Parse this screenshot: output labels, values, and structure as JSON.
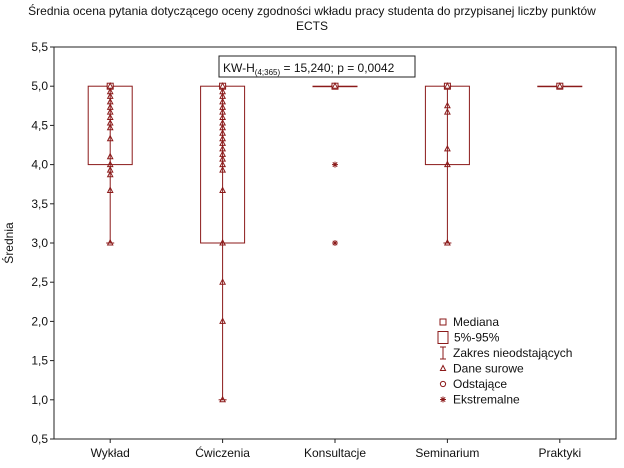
{
  "chart_data": {
    "type": "box",
    "title_line1": "Średnia ocena pytania dotyczącego oceny zgodności wkładu pracy studenta do przypisanej liczby punktów",
    "title_line2": "ECTS",
    "ylabel": "Średnia",
    "xlabel": "",
    "ylim": [
      0.5,
      5.5
    ],
    "yticks": [
      "0,5",
      "1,0",
      "1,5",
      "2,0",
      "2,5",
      "3,0",
      "3,5",
      "4,0",
      "4,5",
      "5,0",
      "5,5"
    ],
    "annotation": {
      "prefix": "KW-H",
      "sub": "(4;365)",
      "rest": " = 15,240; p = 0,0042"
    },
    "categories": [
      "Wykład",
      "Ćwiczenia",
      "Konsultacje",
      "Seminarium",
      "Praktyki"
    ],
    "boxes": [
      {
        "name": "Wykład",
        "median": 5.0,
        "q_low": 4.0,
        "q_high": 5.0,
        "whisker_low": 3.0,
        "whisker_high": 5.0,
        "raw": [
          5.0,
          4.93,
          4.87,
          4.8,
          4.73,
          4.67,
          4.6,
          4.53,
          4.47,
          4.33,
          4.1,
          4.0,
          3.93,
          3.87,
          3.67,
          3.0
        ],
        "extremes": []
      },
      {
        "name": "Ćwiczenia",
        "median": 5.0,
        "q_low": 3.0,
        "q_high": 5.0,
        "whisker_low": 1.0,
        "whisker_high": 5.0,
        "raw": [
          5.0,
          4.93,
          4.87,
          4.8,
          4.73,
          4.67,
          4.6,
          4.53,
          4.47,
          4.4,
          4.33,
          4.27,
          4.2,
          4.13,
          4.07,
          4.0,
          3.93,
          3.67,
          3.0,
          2.5,
          2.0,
          1.0
        ],
        "extremes": []
      },
      {
        "name": "Konsultacje",
        "median": 5.0,
        "q_low": 5.0,
        "q_high": 5.0,
        "whisker_low": 5.0,
        "whisker_high": 5.0,
        "raw": [
          5.0
        ],
        "extremes": [
          4.0,
          3.0
        ]
      },
      {
        "name": "Seminarium",
        "median": 5.0,
        "q_low": 4.0,
        "q_high": 5.0,
        "whisker_low": 3.0,
        "whisker_high": 5.0,
        "raw": [
          5.0,
          4.75,
          4.67,
          4.2,
          4.0,
          3.0
        ],
        "extremes": []
      },
      {
        "name": "Praktyki",
        "median": 5.0,
        "q_low": 5.0,
        "q_high": 5.0,
        "whisker_low": 5.0,
        "whisker_high": 5.0,
        "raw": [
          5.0
        ],
        "extremes": []
      }
    ],
    "legend": {
      "placement": "bottom-right",
      "items": [
        {
          "key": "median",
          "label": "Mediana"
        },
        {
          "key": "box",
          "label": "5%-95%"
        },
        {
          "key": "whisker",
          "label": "Zakres nieodstających"
        },
        {
          "key": "raw",
          "label": "Dane surowe"
        },
        {
          "key": "outlier",
          "label": "Odstające"
        },
        {
          "key": "extreme",
          "label": "Ekstremalne"
        }
      ]
    },
    "colors": {
      "box": "#8b1a1a",
      "axis": "#222222",
      "text": "#111111"
    },
    "grid": false
  }
}
